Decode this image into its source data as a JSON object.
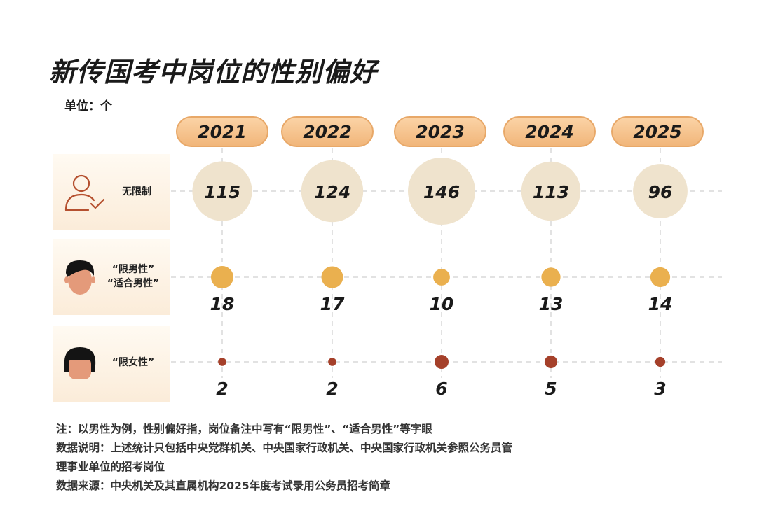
{
  "title": "新传国考中岗位的性别偏好",
  "unit": "单位：个",
  "chart_data": {
    "type": "bubble",
    "years": [
      "2021",
      "2022",
      "2023",
      "2024",
      "2025"
    ],
    "series": [
      {
        "name": "无限制",
        "label_lines": [
          "无限制"
        ],
        "values": [
          115,
          124,
          146,
          113,
          96
        ],
        "color": "#efe3cd"
      },
      {
        "name": "“限男性”“适合男性”",
        "label_lines": [
          "“限男性”",
          "“适合男性”"
        ],
        "values": [
          18,
          17,
          10,
          13,
          14
        ],
        "color": "#eab04f"
      },
      {
        "name": "“限女性”",
        "label_lines": [
          "“限女性”"
        ],
        "values": [
          2,
          2,
          6,
          5,
          3
        ],
        "color": "#a5402a"
      }
    ]
  },
  "notes": [
    "注：以男性为例，性别偏好指，岗位备注中写有“限男性”、“适合男性”等字眼",
    "数据说明：上述统计只包括中央党群机关、中央国家行政机关、中央国家行政机关参照公务员管",
    "理事业单位的招考岗位",
    "数据来源：中央机关及其直属机构2025年度考试录用公务员招考简章"
  ],
  "icons": [
    "person-check-icon",
    "male-avatar-icon",
    "female-avatar-icon"
  ]
}
